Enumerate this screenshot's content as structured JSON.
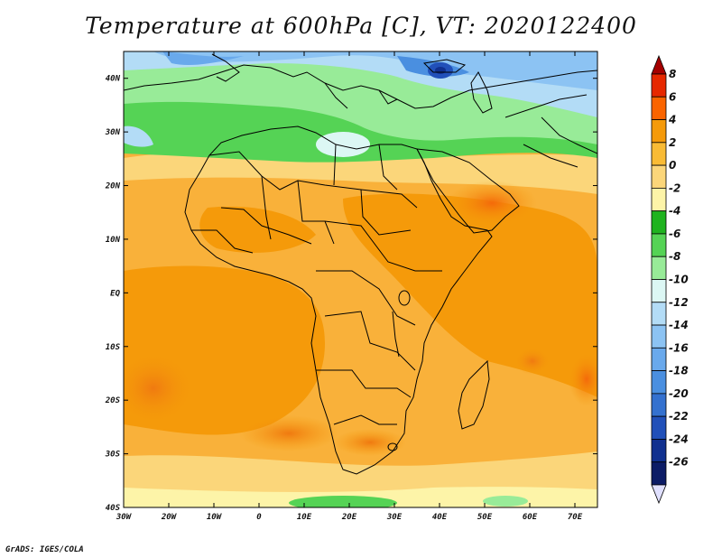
{
  "title": "Temperature at 600hPa [C], VT: 2020122400",
  "credit": "GrADS: IGES/COLA",
  "map": {
    "lon_range": [
      -30,
      75
    ],
    "lat_range": [
      -40,
      45
    ],
    "lon_ticks": [
      "30W",
      "20W",
      "10W",
      "0",
      "10E",
      "20E",
      "30E",
      "40E",
      "50E",
      "60E",
      "70E"
    ],
    "lat_ticks": [
      "40S",
      "30S",
      "20S",
      "10S",
      "EQ",
      "10N",
      "20N",
      "30N",
      "40N"
    ]
  },
  "colorbar": {
    "levels": [
      "8",
      "6",
      "4",
      "2",
      "0",
      "-2",
      "-4",
      "-6",
      "-8",
      "-10",
      "-12",
      "-14",
      "-16",
      "-18",
      "-20",
      "-22",
      "-24",
      "-26"
    ],
    "colors": [
      "#a50000",
      "#e62800",
      "#fa6400",
      "#f59a0a",
      "#f9bb35",
      "#fbd67a",
      "#fdf4a8",
      "#1fb31f",
      "#55d355",
      "#98eb98",
      "#dcf7f4",
      "#b3dcf6",
      "#8cc3f3",
      "#69a9ec",
      "#4a8fe0",
      "#3471cf",
      "#2150b9",
      "#10308f",
      "#0c1c66",
      "#e0e0ff"
    ]
  }
}
